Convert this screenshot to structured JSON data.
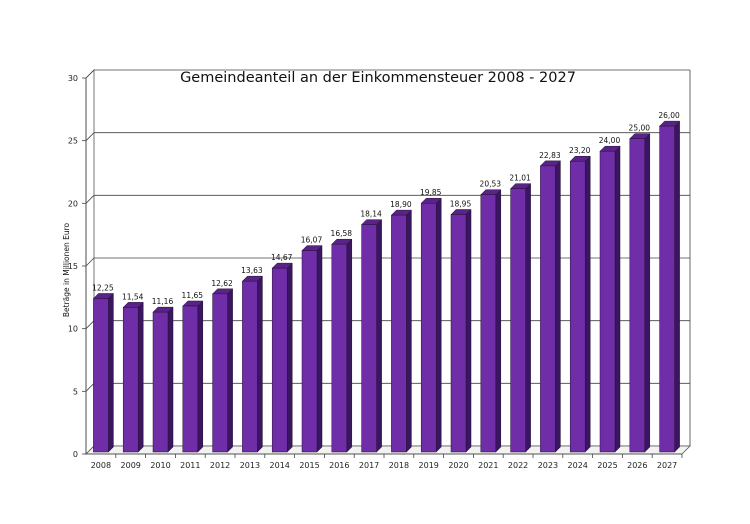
{
  "chart_data": {
    "type": "bar",
    "title": "Gemeindeanteil an der Einkommensteuer 2008 - 2027",
    "xlabel": "",
    "ylabel": "Beträge in Millionen Euro",
    "ylim": [
      0,
      30
    ],
    "yticks": [
      0,
      5,
      10,
      15,
      20,
      25,
      30
    ],
    "grid": true,
    "legend": "none",
    "bar_color": "#6f2da8",
    "categories": [
      "2008",
      "2009",
      "2010",
      "2011",
      "2012",
      "2013",
      "2014",
      "2015",
      "2016",
      "2017",
      "2018",
      "2019",
      "2020",
      "2021",
      "2022",
      "2023",
      "2024",
      "2025",
      "2026",
      "2027"
    ],
    "values": [
      12.25,
      11.54,
      11.16,
      11.65,
      12.62,
      13.63,
      14.67,
      16.07,
      16.58,
      18.14,
      18.9,
      19.85,
      18.95,
      20.53,
      21.01,
      22.83,
      23.2,
      24.0,
      25.0,
      26.0
    ],
    "data_labels": [
      "12,25",
      "11,54",
      "11,16",
      "11,65",
      "12,62",
      "13,63",
      "14,67",
      "16,07",
      "16,58",
      "18,14",
      "18,90",
      "19,85",
      "18,95",
      "20,53",
      "21,01",
      "22,83",
      "23,20",
      "24,00",
      "25,00",
      "26,00"
    ]
  }
}
